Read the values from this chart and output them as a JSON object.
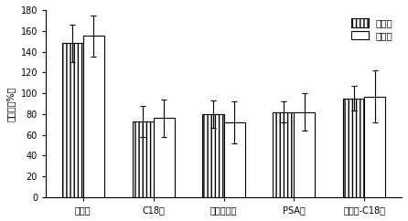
{
  "categories": [
    "活性炭",
    "C18粉",
    "中性氧化铝",
    "PSA粉",
    "活性炭-C18粉"
  ],
  "series": [
    {
      "name": "三价砷",
      "values": [
        148,
        73,
        80,
        82,
        95
      ],
      "errors": [
        18,
        15,
        13,
        10,
        12
      ],
      "hatch": "||||",
      "facecolor": "white",
      "edgecolor": "#000000"
    },
    {
      "name": "五价砷",
      "values": [
        155,
        76,
        72,
        82,
        97
      ],
      "errors": [
        20,
        18,
        20,
        18,
        25
      ],
      "hatch": "====",
      "facecolor": "white",
      "edgecolor": "#000000"
    }
  ],
  "ylabel": "回收率（%）",
  "ylim": [
    0,
    180
  ],
  "yticks": [
    0,
    20,
    40,
    60,
    80,
    100,
    120,
    140,
    160,
    180
  ],
  "bar_width": 0.3,
  "background_color": "#ffffff",
  "tick_fontsize": 7,
  "legend_fontsize": 7.5,
  "ylabel_fontsize": 7
}
